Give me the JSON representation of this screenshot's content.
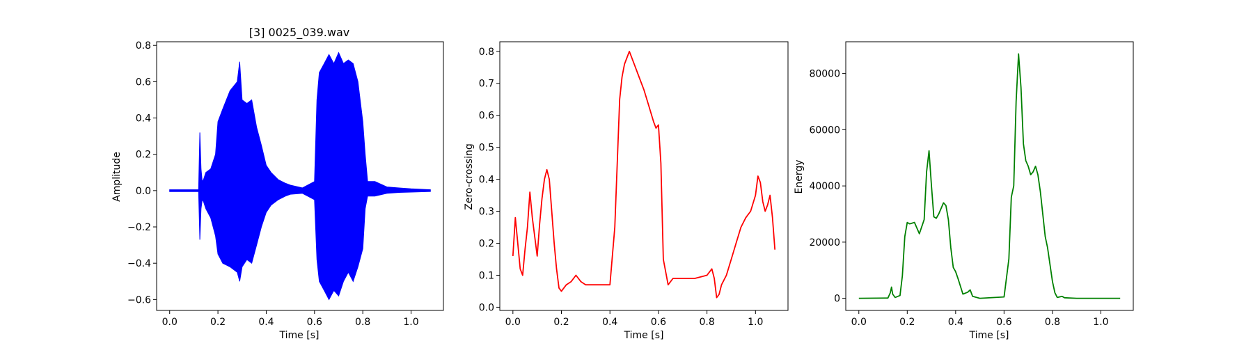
{
  "chart_data": [
    {
      "type": "line",
      "title": "[3] 0025_039.wav",
      "xlabel": "Time [s]",
      "ylabel": "Amplitude",
      "xlim": [
        -0.054,
        1.134
      ],
      "ylim": [
        -0.66,
        0.82
      ],
      "xticks": [
        0.0,
        0.2,
        0.4,
        0.6,
        0.8,
        1.0
      ],
      "xtick_labels": [
        "0.0",
        "0.2",
        "0.4",
        "0.6",
        "0.8",
        "1.0"
      ],
      "yticks": [
        -0.6,
        -0.4,
        -0.2,
        0.0,
        0.2,
        0.4,
        0.6,
        0.8
      ],
      "ytick_labels": [
        "−0.6",
        "−0.4",
        "−0.2",
        "0.0",
        "0.2",
        "0.4",
        "0.6",
        "0.8"
      ],
      "grid": false,
      "series": [
        {
          "color": "#0000ff",
          "style": "waveform",
          "envelope_x": [
            0.0,
            0.12,
            0.125,
            0.13,
            0.135,
            0.14,
            0.15,
            0.17,
            0.19,
            0.2,
            0.22,
            0.25,
            0.28,
            0.29,
            0.3,
            0.32,
            0.34,
            0.36,
            0.38,
            0.4,
            0.42,
            0.45,
            0.48,
            0.5,
            0.55,
            0.6,
            0.61,
            0.62,
            0.64,
            0.66,
            0.68,
            0.7,
            0.72,
            0.74,
            0.76,
            0.78,
            0.8,
            0.81,
            0.82,
            0.85,
            0.9,
            0.95,
            1.0,
            1.08
          ],
          "envelope_upper": [
            0.005,
            0.005,
            0.32,
            0.12,
            0.05,
            0.06,
            0.1,
            0.12,
            0.2,
            0.38,
            0.45,
            0.55,
            0.6,
            0.71,
            0.5,
            0.48,
            0.5,
            0.35,
            0.25,
            0.14,
            0.1,
            0.06,
            0.04,
            0.03,
            0.015,
            0.05,
            0.5,
            0.65,
            0.7,
            0.75,
            0.7,
            0.76,
            0.7,
            0.72,
            0.7,
            0.6,
            0.38,
            0.2,
            0.05,
            0.05,
            0.02,
            0.015,
            0.01,
            0.005
          ],
          "envelope_lower": [
            -0.005,
            -0.005,
            -0.27,
            -0.1,
            -0.05,
            -0.06,
            -0.1,
            -0.15,
            -0.25,
            -0.35,
            -0.4,
            -0.42,
            -0.45,
            -0.5,
            -0.42,
            -0.38,
            -0.4,
            -0.3,
            -0.2,
            -0.12,
            -0.08,
            -0.05,
            -0.03,
            -0.02,
            -0.015,
            -0.05,
            -0.38,
            -0.5,
            -0.55,
            -0.6,
            -0.55,
            -0.58,
            -0.5,
            -0.45,
            -0.5,
            -0.42,
            -0.32,
            -0.1,
            -0.03,
            -0.03,
            -0.015,
            -0.01,
            -0.008,
            -0.005
          ]
        }
      ]
    },
    {
      "type": "line",
      "title": "",
      "xlabel": "Time [s]",
      "ylabel": "Zero-crossing",
      "xlim": [
        -0.054,
        1.134
      ],
      "ylim": [
        -0.01,
        0.83
      ],
      "xticks": [
        0.0,
        0.2,
        0.4,
        0.6,
        0.8,
        1.0
      ],
      "xtick_labels": [
        "0.0",
        "0.2",
        "0.4",
        "0.6",
        "0.8",
        "1.0"
      ],
      "yticks": [
        0.0,
        0.1,
        0.2,
        0.3,
        0.4,
        0.5,
        0.6,
        0.7,
        0.8
      ],
      "ytick_labels": [
        "0.0",
        "0.1",
        "0.2",
        "0.3",
        "0.4",
        "0.5",
        "0.6",
        "0.7",
        "0.8"
      ],
      "grid": false,
      "series": [
        {
          "color": "#ff0000",
          "x": [
            0.0,
            0.01,
            0.02,
            0.03,
            0.04,
            0.05,
            0.06,
            0.07,
            0.08,
            0.09,
            0.1,
            0.11,
            0.12,
            0.13,
            0.14,
            0.15,
            0.16,
            0.17,
            0.18,
            0.19,
            0.2,
            0.22,
            0.24,
            0.26,
            0.28,
            0.3,
            0.35,
            0.4,
            0.42,
            0.43,
            0.44,
            0.45,
            0.46,
            0.47,
            0.48,
            0.5,
            0.52,
            0.54,
            0.56,
            0.58,
            0.59,
            0.6,
            0.61,
            0.62,
            0.64,
            0.66,
            0.7,
            0.75,
            0.8,
            0.82,
            0.83,
            0.84,
            0.85,
            0.86,
            0.88,
            0.9,
            0.92,
            0.94,
            0.96,
            0.98,
            1.0,
            1.01,
            1.02,
            1.03,
            1.04,
            1.05,
            1.06,
            1.07,
            1.08
          ],
          "y": [
            0.16,
            0.28,
            0.2,
            0.12,
            0.1,
            0.18,
            0.25,
            0.36,
            0.28,
            0.22,
            0.16,
            0.26,
            0.34,
            0.4,
            0.43,
            0.4,
            0.3,
            0.2,
            0.12,
            0.06,
            0.05,
            0.07,
            0.08,
            0.1,
            0.08,
            0.07,
            0.07,
            0.07,
            0.25,
            0.45,
            0.65,
            0.72,
            0.76,
            0.78,
            0.8,
            0.76,
            0.72,
            0.68,
            0.63,
            0.58,
            0.56,
            0.57,
            0.45,
            0.15,
            0.07,
            0.09,
            0.09,
            0.09,
            0.1,
            0.12,
            0.09,
            0.03,
            0.04,
            0.07,
            0.1,
            0.15,
            0.2,
            0.25,
            0.28,
            0.3,
            0.35,
            0.41,
            0.39,
            0.33,
            0.3,
            0.32,
            0.35,
            0.28,
            0.18
          ]
        }
      ]
    },
    {
      "type": "line",
      "title": "",
      "xlabel": "Time [s]",
      "ylabel": "Energy",
      "xlim": [
        -0.054,
        1.134
      ],
      "ylim": [
        -4300,
        91300
      ],
      "xticks": [
        0.0,
        0.2,
        0.4,
        0.6,
        0.8,
        1.0
      ],
      "xtick_labels": [
        "0.0",
        "0.2",
        "0.4",
        "0.6",
        "0.8",
        "1.0"
      ],
      "yticks": [
        0,
        20000,
        40000,
        60000,
        80000
      ],
      "ytick_labels": [
        "0",
        "20000",
        "40000",
        "60000",
        "80000"
      ],
      "grid": false,
      "series": [
        {
          "color": "#008000",
          "x": [
            0.0,
            0.12,
            0.13,
            0.135,
            0.14,
            0.15,
            0.17,
            0.18,
            0.19,
            0.2,
            0.21,
            0.23,
            0.25,
            0.27,
            0.28,
            0.29,
            0.3,
            0.31,
            0.32,
            0.33,
            0.35,
            0.36,
            0.37,
            0.38,
            0.39,
            0.4,
            0.41,
            0.43,
            0.45,
            0.46,
            0.47,
            0.5,
            0.6,
            0.62,
            0.63,
            0.64,
            0.65,
            0.66,
            0.67,
            0.68,
            0.69,
            0.7,
            0.71,
            0.72,
            0.73,
            0.74,
            0.75,
            0.76,
            0.77,
            0.78,
            0.79,
            0.8,
            0.81,
            0.82,
            0.84,
            0.85,
            0.9,
            1.08
          ],
          "y": [
            0,
            100,
            2000,
            4000,
            1500,
            300,
            1000,
            8000,
            22000,
            27000,
            26500,
            27000,
            23000,
            28000,
            45000,
            52500,
            40000,
            29000,
            28500,
            30000,
            34000,
            33000,
            28000,
            18000,
            11000,
            9500,
            7000,
            1500,
            2200,
            3000,
            700,
            0,
            500,
            14000,
            36000,
            40000,
            70000,
            87000,
            75000,
            55000,
            49000,
            47000,
            44000,
            45000,
            47000,
            44000,
            38000,
            30000,
            22000,
            18000,
            12000,
            6000,
            2000,
            300,
            700,
            200,
            0,
            0
          ]
        }
      ]
    }
  ]
}
